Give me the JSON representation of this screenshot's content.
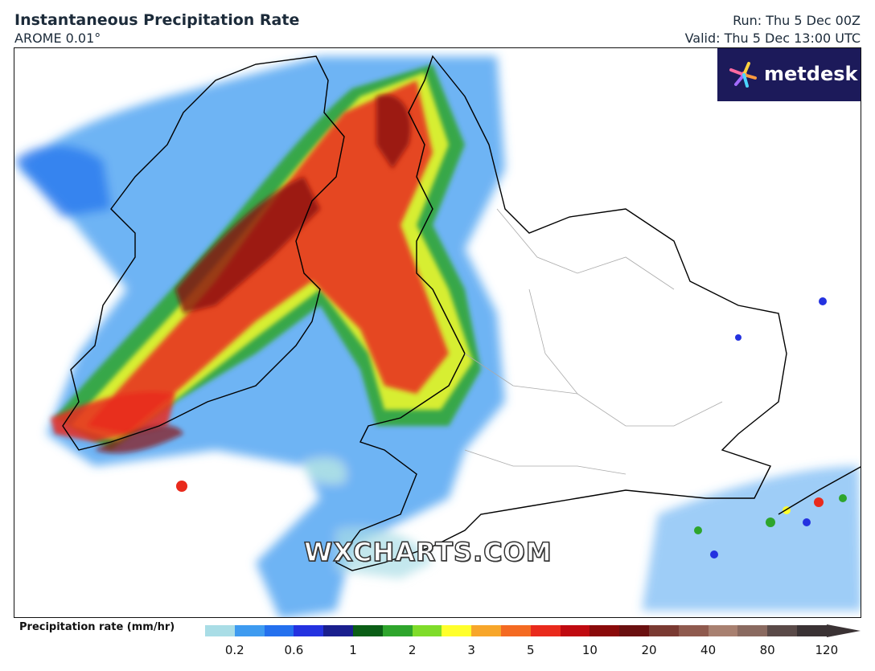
{
  "header": {
    "title": "Instantaneous Precipitation Rate",
    "model": "AROME 0.01°",
    "run": "Run: Thu 5 Dec 00Z",
    "valid": "Valid: Thu 5 Dec 13:00 UTC"
  },
  "logo": {
    "text": "metdesk",
    "icon": "metdesk-flower-icon"
  },
  "watermark": "WXCHARTS.COM",
  "legend": {
    "label": "Precipitation rate (mm/hr)",
    "ticks": [
      "0.2",
      "0.6",
      "1",
      "2",
      "3",
      "5",
      "10",
      "20",
      "40",
      "80",
      "120"
    ],
    "colors": [
      "#a9dde6",
      "#3e9bf0",
      "#2470ee",
      "#2432e0",
      "#1a1f8e",
      "#0b5e16",
      "#2ea52c",
      "#7fdc2a",
      "#ffff2c",
      "#f7a62a",
      "#f46a22",
      "#e92a1c",
      "#c00a10",
      "#8a0a0a",
      "#6a1010",
      "#7a3a32",
      "#8f5a4e",
      "#a88070",
      "#8a6a60",
      "#5a4a48",
      "#3a3234"
    ]
  },
  "colors": {
    "frame": "#111111",
    "logo_bg": "#1c1a5a"
  }
}
